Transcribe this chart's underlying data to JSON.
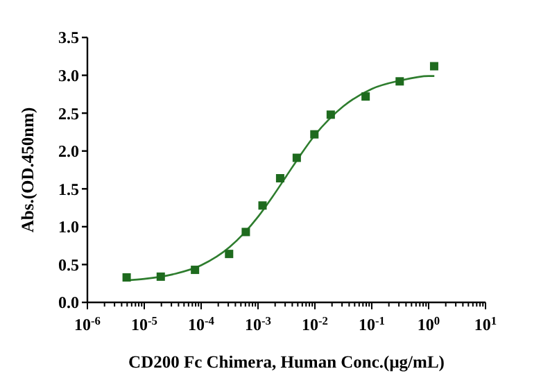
{
  "chart_data": {
    "type": "scatter",
    "xlabel": "CD200 Fc Chimera, Human Conc.(μg/mL)",
    "ylabel": "Abs.(OD.450nm)",
    "log": "x",
    "xlim": [
      1e-06,
      10
    ],
    "ylim": [
      0,
      3.5
    ],
    "yticks": [
      {
        "value": 0,
        "label": "0.0"
      },
      {
        "value": 0.5,
        "label": "0.5"
      },
      {
        "value": 1,
        "label": "1.0"
      },
      {
        "value": 1.5,
        "label": "1.5"
      },
      {
        "value": 2,
        "label": "2.0"
      },
      {
        "value": 2.5,
        "label": "2.5"
      },
      {
        "value": 3,
        "label": "3.0"
      },
      {
        "value": 3.5,
        "label": "3.5"
      }
    ],
    "xticks": [
      {
        "value": 1e-06,
        "label": "10$^{-6}$"
      },
      {
        "value": 2e-06,
        "label": null
      },
      {
        "value": 3e-06,
        "label": null
      },
      {
        "value": 4e-06,
        "label": null
      },
      {
        "value": 5e-06,
        "label": null
      },
      {
        "value": 6e-06,
        "label": null
      },
      {
        "value": 7e-06,
        "label": null
      },
      {
        "value": 8e-06,
        "label": null
      },
      {
        "value": 9e-06,
        "label": null
      },
      {
        "value": 1e-05,
        "label": "10$^{-5}$"
      },
      {
        "value": 2e-05,
        "label": null
      },
      {
        "value": 3e-05,
        "label": null
      },
      {
        "value": 4e-05,
        "label": null
      },
      {
        "value": 5e-05,
        "label": null
      },
      {
        "value": 6e-05,
        "label": null
      },
      {
        "value": 7e-05,
        "label": null
      },
      {
        "value": 8e-05,
        "label": null
      },
      {
        "value": 9e-05,
        "label": null
      },
      {
        "value": 0.0001,
        "label": "10$^{-4}$"
      },
      {
        "value": 0.0002,
        "label": null
      },
      {
        "value": 0.0003,
        "label": null
      },
      {
        "value": 0.0004,
        "label": null
      },
      {
        "value": 0.0005,
        "label": null
      },
      {
        "value": 0.0006,
        "label": null
      },
      {
        "value": 0.0007,
        "label": null
      },
      {
        "value": 0.0008,
        "label": null
      },
      {
        "value": 0.0009,
        "label": null
      },
      {
        "value": 0.001,
        "label": "10$^{-3}$"
      },
      {
        "value": 0.002,
        "label": null
      },
      {
        "value": 0.003,
        "label": null
      },
      {
        "value": 0.004,
        "label": null
      },
      {
        "value": 0.005,
        "label": null
      },
      {
        "value": 0.006,
        "label": null
      },
      {
        "value": 0.007,
        "label": null
      },
      {
        "value": 0.008,
        "label": null
      },
      {
        "value": 0.009,
        "label": null
      },
      {
        "value": 0.01,
        "label": "10$^{-2}$"
      },
      {
        "value": 0.02,
        "label": null
      },
      {
        "value": 0.03,
        "label": null
      },
      {
        "value": 0.04,
        "label": null
      },
      {
        "value": 0.05,
        "label": null
      },
      {
        "value": 0.06,
        "label": null
      },
      {
        "value": 0.07,
        "label": null
      },
      {
        "value": 0.08,
        "label": null
      },
      {
        "value": 0.09,
        "label": null
      },
      {
        "value": 0.1,
        "label": "10$^{-1}$"
      },
      {
        "value": 0.2,
        "label": null
      },
      {
        "value": 0.3,
        "label": null
      },
      {
        "value": 0.4,
        "label": null
      },
      {
        "value": 0.5,
        "label": null
      },
      {
        "value": 0.6,
        "label": null
      },
      {
        "value": 0.7,
        "label": null
      },
      {
        "value": 0.8,
        "label": null
      },
      {
        "value": 0.9,
        "label": null
      },
      {
        "value": 1,
        "label": "10$^{0}$"
      },
      {
        "value": 2,
        "label": null
      },
      {
        "value": 3,
        "label": null
      },
      {
        "value": 4,
        "label": null
      },
      {
        "value": 5,
        "label": null
      },
      {
        "value": 6,
        "label": null
      },
      {
        "value": 7,
        "label": null
      },
      {
        "value": 8,
        "label": null
      },
      {
        "value": 9,
        "label": null
      },
      {
        "value": 10,
        "label": "10$^{1}$"
      }
    ],
    "marker": "square",
    "series": [
      {
        "color": "#1e6b1e",
        "x": [
          4.9e-06,
          1.95e-05,
          7.8e-05,
          0.00031,
          0.00061,
          0.0012,
          0.00245,
          0.0048,
          0.0098,
          0.019,
          0.078,
          0.31,
          1.25
        ],
        "values": [
          0.33,
          0.34,
          0.43,
          0.64,
          0.93,
          1.28,
          1.64,
          1.91,
          2.22,
          2.48,
          2.72,
          2.92,
          3.12
        ]
      },
      {
        "type": "line",
        "color": "#2e7d2e",
        "marker": "none",
        "x": [
          4.9e-06,
          1e-05,
          3.16e-05,
          0.0001,
          0.000316,
          0.000562,
          0.001,
          0.00178,
          0.00316,
          0.00562,
          0.01,
          0.0178,
          0.0316,
          0.1,
          0.316,
          1,
          1.26
        ],
        "values": [
          0.29,
          0.31,
          0.37,
          0.49,
          0.73,
          0.91,
          1.13,
          1.39,
          1.67,
          1.95,
          2.21,
          2.42,
          2.59,
          2.82,
          2.93,
          2.99,
          2.99
        ]
      }
    ]
  }
}
